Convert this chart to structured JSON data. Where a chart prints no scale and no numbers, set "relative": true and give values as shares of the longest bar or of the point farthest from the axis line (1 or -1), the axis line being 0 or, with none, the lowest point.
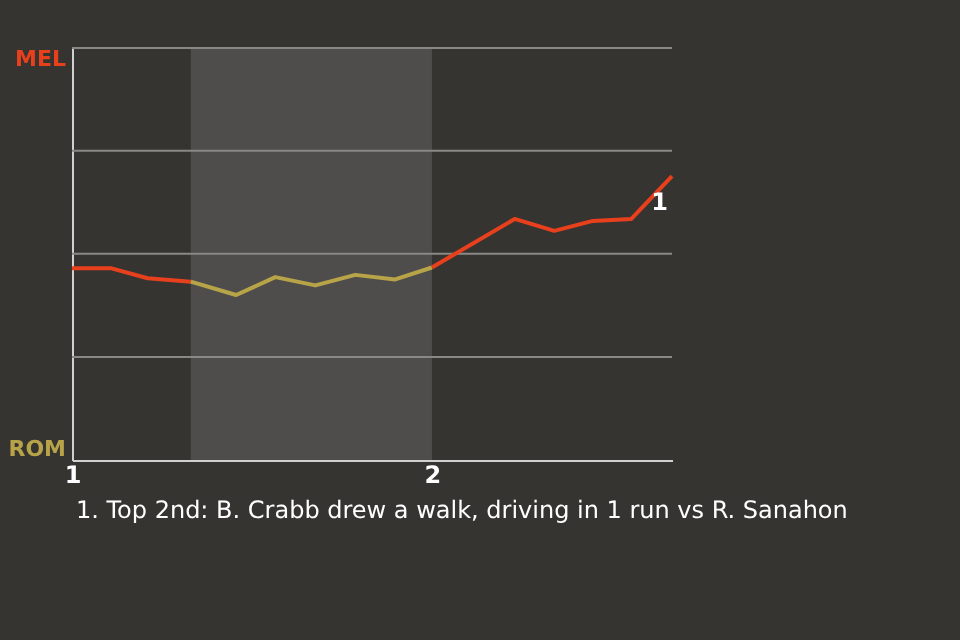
{
  "chart_data": {
    "type": "line",
    "relative": true,
    "series": [
      {
        "color": "#e8401c",
        "x": [
          1.0,
          1.11,
          1.21,
          1.33
        ],
        "values": [
          0.675,
          0.675,
          0.64,
          0.628
        ]
      },
      {
        "color": "#b8a448",
        "x": [
          1.33,
          1.456,
          1.565,
          1.676,
          1.787,
          1.898,
          2.0
        ],
        "values": [
          0.628,
          0.581,
          0.644,
          0.615,
          0.652,
          0.636,
          0.678
        ]
      },
      {
        "color": "#e8401c",
        "x": [
          2.0,
          2.23,
          2.34,
          2.447,
          2.554,
          2.667
        ],
        "values": [
          0.678,
          0.849,
          0.807,
          0.842,
          0.849,
          1.0
        ]
      }
    ],
    "xlim": [
      1,
      2.667
    ],
    "xticks": [
      1,
      2
    ],
    "marker": "none",
    "line_style": "solid",
    "ref_lines": [
      {
        "axis": "y",
        "value": 0.363,
        "color": "#8a8885"
      },
      {
        "axis": "y",
        "value": 0.726,
        "color": "#8a8885"
      },
      {
        "axis": "y",
        "value": 1.089,
        "color": "#8a8885"
      },
      {
        "axis": "y",
        "value": 1.451,
        "color": "#8a8885"
      }
    ],
    "bands": [
      {
        "axis": "x",
        "from": 1.33,
        "to": 2.0,
        "color": "#4e4d4b"
      }
    ],
    "annotations": [
      "MEL",
      "ROM",
      {
        "text": "1",
        "x": 2.667,
        "y": 1.0
      },
      "1. Top 2nd: B. Crabb drew a walk, driving in 1 run vs R. Sanahon"
    ]
  }
}
